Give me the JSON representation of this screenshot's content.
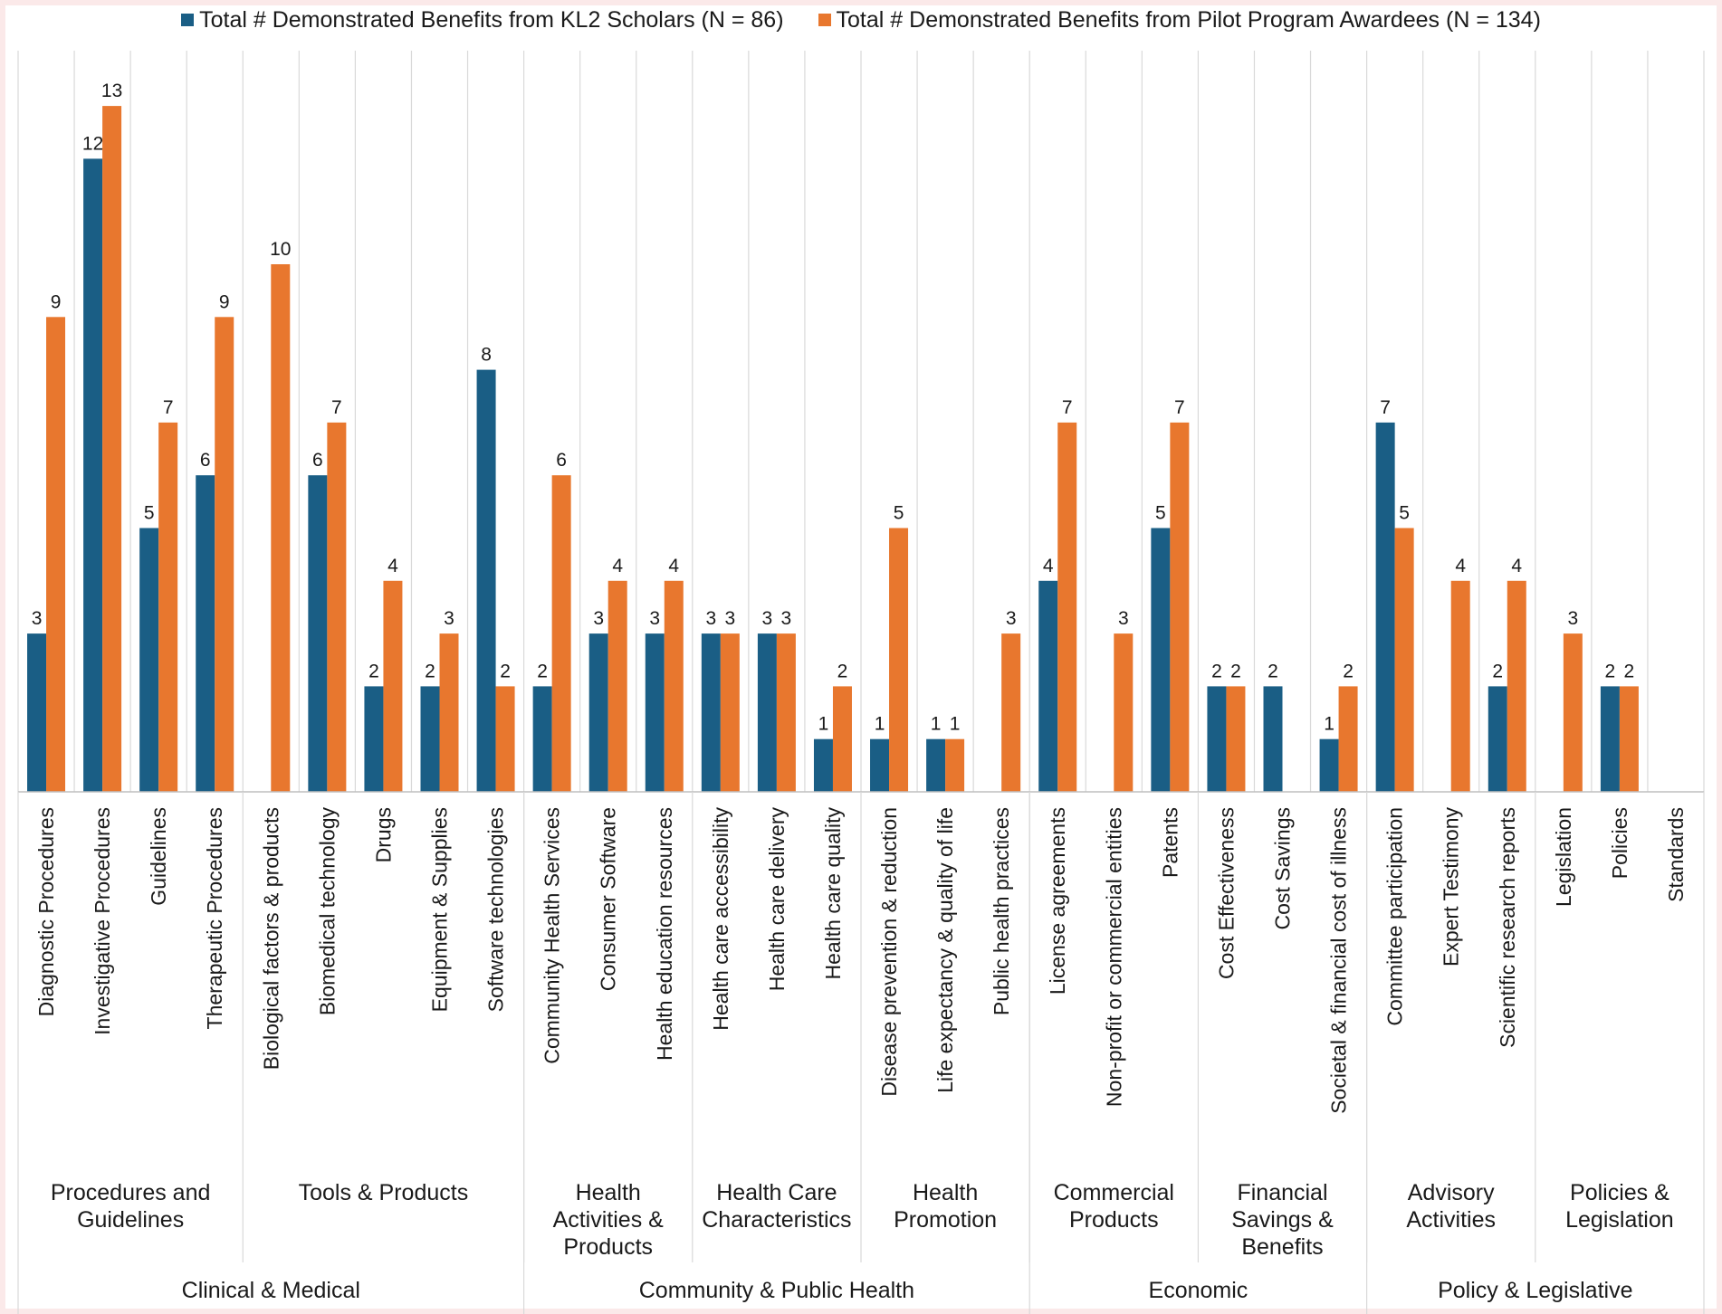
{
  "chart_data": {
    "type": "bar",
    "title": "",
    "xlabel": "",
    "ylabel": "",
    "ylim": [
      0,
      13
    ],
    "grid": false,
    "legend_position": "top",
    "series": [
      {
        "name": "Total # Demonstrated Benefits from KL2 Scholars (N = 86)",
        "color": "#1a5e85",
        "values": [
          3,
          12,
          5,
          6,
          0,
          6,
          2,
          2,
          8,
          2,
          3,
          3,
          3,
          3,
          1,
          1,
          1,
          0,
          4,
          0,
          5,
          2,
          2,
          1,
          7,
          0,
          2,
          0,
          2,
          0
        ],
        "labels": [
          "3",
          "12",
          "5",
          "6",
          "",
          "6",
          "2",
          "2",
          "8",
          "2",
          "3",
          "3",
          "3",
          "3",
          "1",
          "1",
          "1",
          "",
          "4",
          "",
          "5",
          "2",
          "2",
          "1",
          "7",
          "",
          "2",
          "",
          "2",
          ""
        ]
      },
      {
        "name": "Total # Demonstrated Benefits from Pilot Program Awardees (N = 134)",
        "color": "#e8772e",
        "values": [
          9,
          13,
          7,
          9,
          10,
          7,
          4,
          3,
          2,
          6,
          4,
          4,
          3,
          3,
          2,
          5,
          1,
          3,
          7,
          3,
          7,
          2,
          0,
          2,
          5,
          4,
          4,
          3,
          2,
          0
        ],
        "labels": [
          "9",
          "13",
          "7",
          "9",
          "10",
          "7",
          "4",
          "3",
          "2",
          "6",
          "4",
          "4",
          "3",
          "3",
          "2",
          "5",
          "1",
          "3",
          "7",
          "3",
          "7",
          "2",
          "",
          "2",
          "5",
          "4",
          "4",
          "3",
          "2",
          ""
        ]
      }
    ],
    "categories": [
      "Diagnostic Procedures",
      "Investigative Procedures",
      "Guidelines",
      "Therapeutic Procedures",
      "Biological factors & products",
      "Biomedical technology",
      "Drugs",
      "Equipment & Supplies",
      "Software technologies",
      "Community Health Services",
      "Consumer Software",
      "Health education resources",
      "Health care accessibility",
      "Health care delivery",
      "Health care quality",
      "Disease prevention & reduction",
      "Life expectancy & quality of life",
      "Public health practices",
      "License agreements",
      "Non-profit or commercial entities",
      "Patents",
      "Cost Effectiveness",
      "Cost Savings",
      "Societal & financial cost of illness",
      "Committee participation",
      "Expert Testimony",
      "Scientific research reports",
      "Legislation",
      "Policies",
      "Standards"
    ],
    "subgroups": [
      {
        "lines": [
          "Procedures and",
          "Guidelines"
        ],
        "start": 0,
        "end": 3
      },
      {
        "lines": [
          "Tools & Products"
        ],
        "start": 4,
        "end": 8
      },
      {
        "lines": [
          "Health",
          "Activities &",
          "Products"
        ],
        "start": 9,
        "end": 11
      },
      {
        "lines": [
          "Health Care",
          "Characteristics"
        ],
        "start": 12,
        "end": 14
      },
      {
        "lines": [
          "Health",
          "Promotion"
        ],
        "start": 15,
        "end": 17
      },
      {
        "lines": [
          "Commercial",
          "Products"
        ],
        "start": 18,
        "end": 20
      },
      {
        "lines": [
          "Financial",
          "Savings &",
          "Benefits"
        ],
        "start": 21,
        "end": 23
      },
      {
        "lines": [
          "Advisory",
          "Activities"
        ],
        "start": 24,
        "end": 26
      },
      {
        "lines": [
          "Policies &",
          "Legislation"
        ],
        "start": 27,
        "end": 29
      }
    ],
    "groups": [
      {
        "label": "Clinical & Medical",
        "start": 0,
        "end": 8
      },
      {
        "label": "Community & Public Health",
        "start": 9,
        "end": 17
      },
      {
        "label": "Economic",
        "start": 18,
        "end": 23
      },
      {
        "label": "Policy & Legislative",
        "start": 24,
        "end": 29
      }
    ]
  }
}
